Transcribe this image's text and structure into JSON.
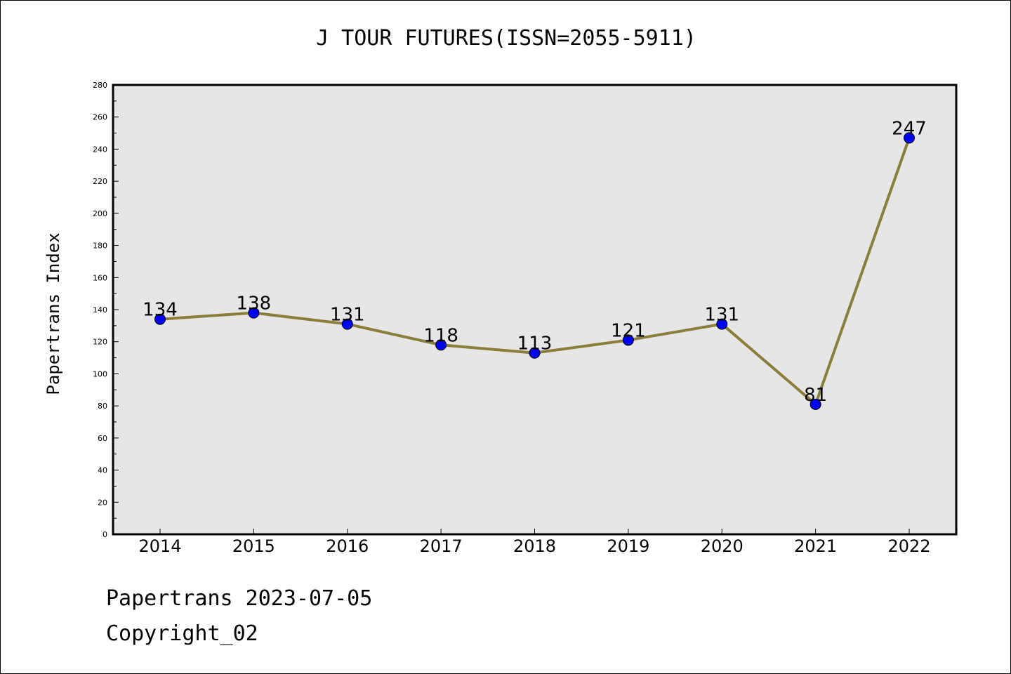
{
  "chart_data": {
    "type": "line",
    "title": "J TOUR FUTURES(ISSN=2055-5911)",
    "xlabel": "",
    "ylabel": "Papertrans Index",
    "categories": [
      "2014",
      "2015",
      "2016",
      "2017",
      "2018",
      "2019",
      "2020",
      "2021",
      "2022"
    ],
    "series": [
      {
        "values": [
          134,
          138,
          131,
          118,
          113,
          121,
          131,
          81,
          247
        ]
      }
    ],
    "data_labels": [
      "134",
      "138",
      "131",
      "118",
      "113",
      "121",
      "131",
      "81",
      "247"
    ],
    "ylim": [
      0,
      280
    ],
    "yticks": [
      0,
      20,
      40,
      60,
      80,
      100,
      120,
      140,
      160,
      180,
      200,
      220,
      240,
      260,
      280
    ],
    "grid": false,
    "legend": "none",
    "colors": {
      "line": "#8b7d3a",
      "marker": "#0000ff",
      "plot_background": "#e6e6e6"
    }
  },
  "footer": {
    "date_line": "Papertrans 2023-07-05",
    "copyright": "Copyright_02"
  }
}
